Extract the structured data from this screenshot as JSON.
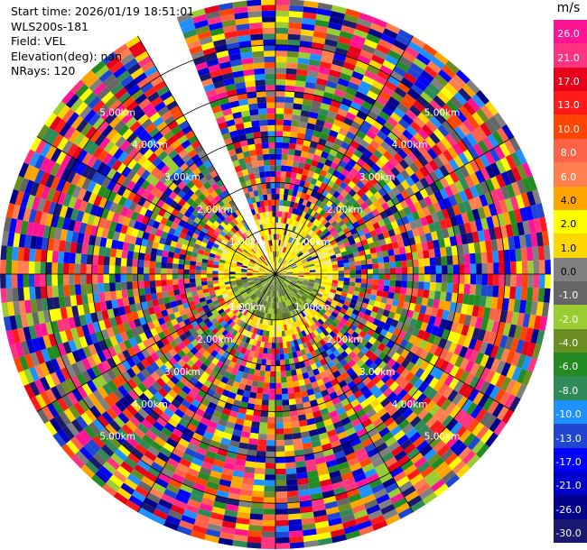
{
  "header": {
    "start_time": "Start time: 2026/01/19 18:51:01",
    "instrument": "WLS200s-181",
    "field": "Field: VEL",
    "elevation": "Elevation(deg): nan",
    "nrays": "NRays: 120"
  },
  "colorbar": {
    "unit": "m/s",
    "labels": [
      "26.0",
      "21.0",
      "17.0",
      "13.0",
      "10.0",
      "8.0",
      "6.0",
      "4.0",
      "2.0",
      "1.0",
      "0.0",
      "-1.0",
      "-2.0",
      "-4.0",
      "-6.0",
      "-8.0",
      "-10.0",
      "-13.0",
      "-17.0",
      "-21.0",
      "-26.0",
      "-30.0"
    ],
    "colors": [
      "#ff1493",
      "#ff3380",
      "#e8001a",
      "#ff1a1a",
      "#ff4500",
      "#ff6347",
      "#ff7f50",
      "#ffa500",
      "#ffff00",
      "#ffd700",
      "#808080",
      "#666666",
      "#9acd32",
      "#6b8e23",
      "#228b22",
      "#2e8b57",
      "#1e90ff",
      "#1e46d2",
      "#0000ff",
      "#0000cd",
      "#00008b",
      "#191970"
    ]
  },
  "chart_data": {
    "type": "heatmap",
    "projection": "polar PPI",
    "field": "VEL",
    "unit": "m/s",
    "nrays": 120,
    "range_rings_km": [
      1.0,
      2.0,
      3.0,
      4.0,
      5.0
    ],
    "range_ring_labels": [
      "1.00km",
      "2.00km",
      "3.00km",
      "4.00km",
      "5.00km"
    ],
    "max_range_km": 6.0,
    "missing_sector_deg": [
      330,
      338
    ],
    "color_min": -30.0,
    "color_max": 26.0
  }
}
